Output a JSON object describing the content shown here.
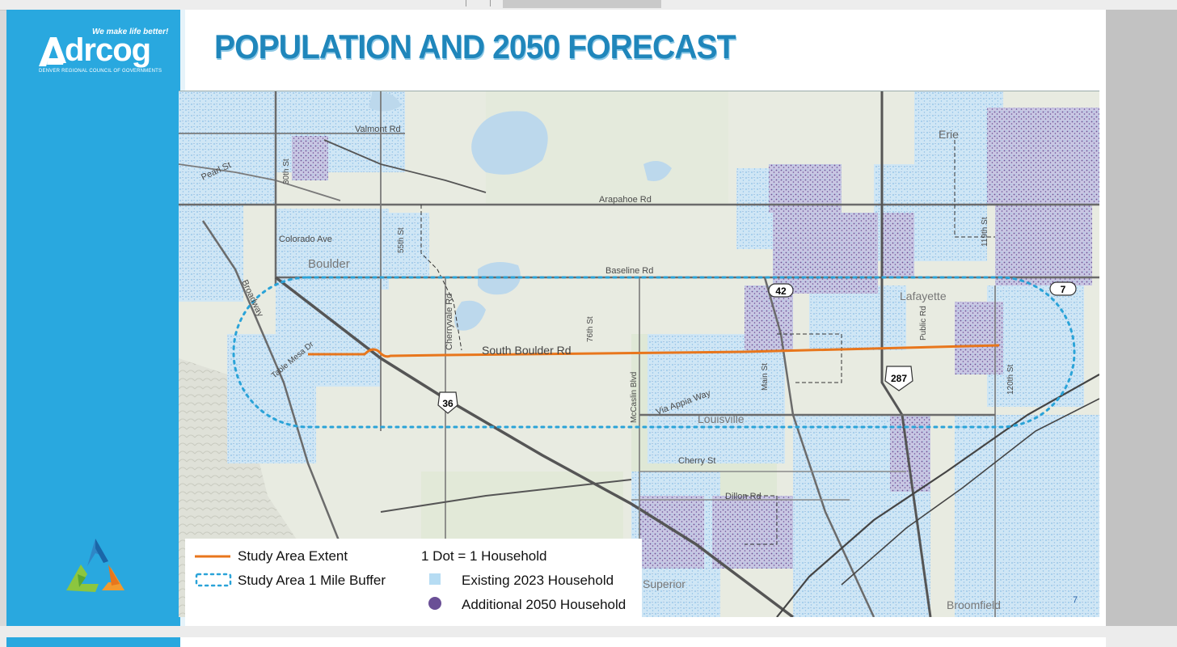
{
  "slide": {
    "title": "POPULATION AND 2050 FORECAST",
    "logo": {
      "tagline": "We make life better!",
      "wordmark": "drcog",
      "subtitle": "DENVER REGIONAL COUNCIL OF GOVERNMENTS"
    },
    "colors": {
      "sidebar": "#29a8df",
      "title": "#1f86bb",
      "study_line": "#e8761c",
      "buffer": "#2aa3d8",
      "existing_dots": "#8fc7ea",
      "additional_dots": "#6a4f96"
    }
  },
  "map": {
    "labels": {
      "valmont": "Valmont Rd",
      "pearl": "Pearl St",
      "s30th": "30th St",
      "arapahoe": "Arapahoe Rd",
      "erie": "Erie",
      "colorado": "Colorado Ave",
      "s55th": "55th St",
      "boulder": "Boulder",
      "baseline": "Baseline Rd",
      "broadway": "Broadway",
      "cherryvale": "Cherryvale Rd",
      "s76th": "76th St",
      "south_boulder": "South Boulder Rd",
      "table_mesa": "Table Mesa Dr",
      "lafayette": "Lafayette",
      "public_rd": "Public Rd",
      "s119th": "119th St",
      "s120th": "120th St",
      "mccaslin": "McCaslin Blvd",
      "via_appia": "Via Appia Way",
      "louisville": "Louisville",
      "main": "Main St",
      "cherry": "Cherry St",
      "dillon": "Dillon Rd",
      "superior": "Superior",
      "broomfield": "Broomfield",
      "page_number": "7"
    },
    "shields": {
      "us36": "36",
      "sh42": "42",
      "us287": "287",
      "sh7": "7"
    }
  },
  "legend": {
    "study_area_extent": "Study Area Extent",
    "buffer": "Study Area 1 Mile Buffer",
    "dot_scale": "1 Dot = 1 Household",
    "existing": "Existing 2023 Household",
    "additional": "Additional 2050 Household"
  }
}
